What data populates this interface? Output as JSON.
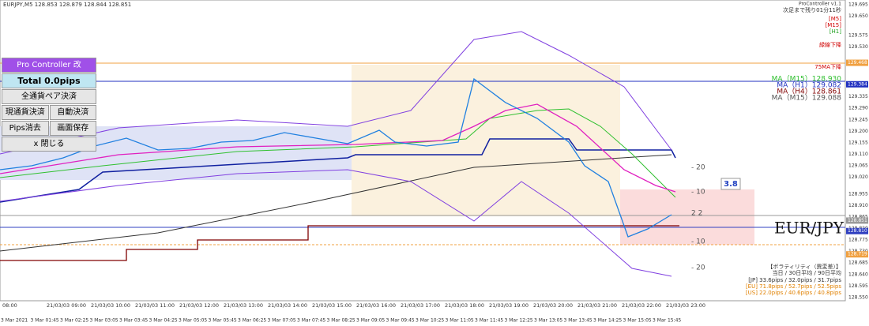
{
  "header": {
    "symbol": "EURJPY,M5  128.853 128.879 128.844 128.851",
    "tool": "ProController v1.1",
    "countdown": "次足まで残り01分11秒",
    "timeframes": [
      "[M5]",
      "[M15]",
      "[H1]"
    ],
    "trend": "緑線下降"
  },
  "ma_info": {
    "status": "75MA下降",
    "lines": [
      "MA（M15）128.930",
      "MA（H1）129.082",
      "MA（H4）128.861",
      "MA（M15）129.088"
    ]
  },
  "panel": {
    "title": "Pro Controller 改",
    "total": "Total   0.0pips",
    "buttons": [
      "全通貨ペア決済",
      "現通貨決済",
      "自動決済",
      "Pips消去",
      "画面保存",
      "x 閉じる"
    ]
  },
  "levels": [
    "- 20",
    "- 10",
    "2 2",
    "- 10",
    "- 20"
  ],
  "badge": "3.8",
  "pair": "EUR/JPY",
  "volatility": {
    "title": "【ボラティリティ（異変差）】",
    "header": "当日 / 30日平均 / 90日平均",
    "rows": [
      "[JP] 33.6pips / 32.0pips / 31.7pips",
      "[EU] 71.8pips / 52.7pips / 52.5pips",
      "[US] 22.0pips / 40.6pips / 40.8pips"
    ]
  },
  "price_axis": {
    "ticks": [
      "129.695",
      "129.650",
      "129.575",
      "129.530",
      "129.335",
      "129.290",
      "129.245",
      "129.200",
      "129.155",
      "129.110",
      "129.065",
      "129.020",
      "128.955",
      "128.910",
      "128.865",
      "128.820",
      "128.775",
      "128.730",
      "128.685",
      "128.640",
      "128.595",
      "128.550"
    ],
    "highlights": [
      "129.468",
      "129.384",
      "128.851",
      "128.810",
      "128.719"
    ]
  },
  "time_axis": {
    "hours": [
      "08:00",
      "21/03/03 09:00",
      "21/03/03 10:00",
      "21/03/03 11:00",
      "21/03/03 12:00",
      "21/03/03 13:00",
      "21/03/03 14:00",
      "21/03/03 15:00",
      "21/03/03 16:00",
      "21/03/03 17:00",
      "21/03/03 18:00",
      "21/03/03 19:00",
      "21/03/03 20:00",
      "21/03/03 21:00",
      "21/03/03 22:00",
      "21/03/03 23:00"
    ],
    "dates": [
      "3 Mar 2021",
      "3 Mar 01:45",
      "3 Mar 02:25",
      "3 Mar 03:05",
      "3 Mar 03:45",
      "3 Mar 04:25",
      "3 Mar 05:05",
      "3 Mar 05:45",
      "3 Mar 06:25",
      "3 Mar 07:05",
      "3 Mar 07:45",
      "3 Mar 08:25",
      "3 Mar 09:05",
      "3 Mar 09:45",
      "3 Mar 10:25",
      "3 Mar 11:05",
      "3 Mar 11:45",
      "3 Mar 12:25",
      "3 Mar 13:05",
      "3 Mar 13:45",
      "3 Mar 14:25",
      "3 Mar 15:05",
      "3 Mar 15:45"
    ]
  }
}
